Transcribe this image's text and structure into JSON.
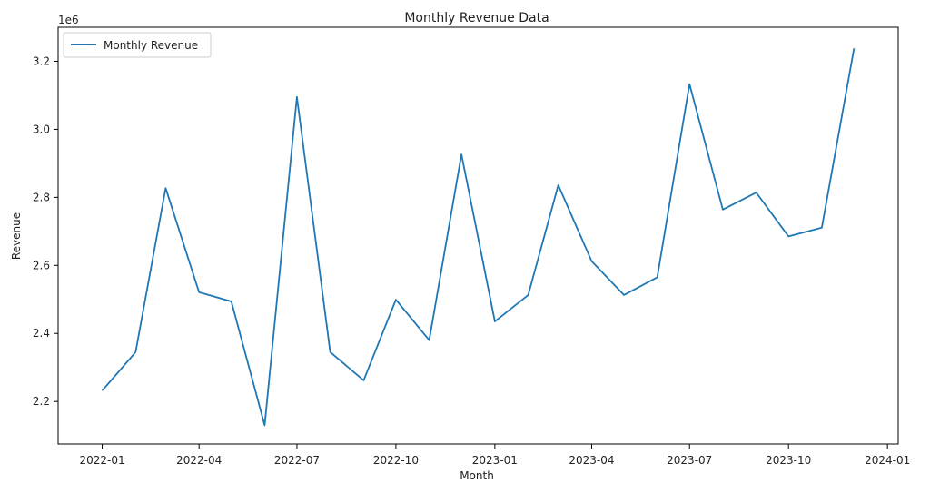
{
  "chart_data": {
    "type": "line",
    "title": "Monthly Revenue Data",
    "xlabel": "Month",
    "ylabel": "Revenue",
    "y_offset_label": "1e6",
    "y_scale": 1000000,
    "x_ticks": [
      "2022-01",
      "2022-04",
      "2022-07",
      "2022-10",
      "2023-01",
      "2023-04",
      "2023-07",
      "2023-10",
      "2024-01"
    ],
    "y_ticks": [
      2.2,
      2.4,
      2.6,
      2.8,
      3.0,
      3.2
    ],
    "xlim": [
      "2021-11-21",
      "2024-01-11"
    ],
    "ylim": [
      2075000,
      3300000
    ],
    "grid": false,
    "legend_position": "upper-left",
    "colors": {
      "line": "#1f77b4"
    },
    "x": [
      "2022-01",
      "2022-02",
      "2022-03",
      "2022-04",
      "2022-05",
      "2022-06",
      "2022-07",
      "2022-08",
      "2022-09",
      "2022-10",
      "2022-11",
      "2022-12",
      "2023-01",
      "2023-02",
      "2023-03",
      "2023-04",
      "2023-05",
      "2023-06",
      "2023-07",
      "2023-08",
      "2023-09",
      "2023-10",
      "2023-11",
      "2023-12"
    ],
    "series": [
      {
        "name": "Monthly Revenue",
        "values": [
          2232000,
          2345000,
          2827000,
          2521000,
          2494000,
          2130000,
          3095000,
          2345000,
          2262000,
          2499000,
          2380000,
          2926000,
          2435000,
          2513000,
          2836000,
          2612000,
          2513000,
          2565000,
          3133000,
          2764000,
          2814000,
          2685000,
          2711000,
          3238000
        ]
      }
    ]
  }
}
